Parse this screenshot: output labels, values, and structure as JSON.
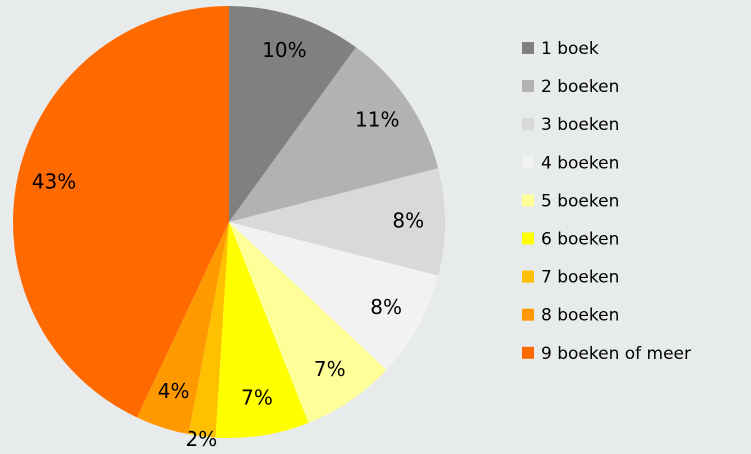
{
  "chart_data": {
    "type": "pie",
    "categories": [
      "1 boek",
      "2 boeken",
      "3 boeken",
      "4 boeken",
      "5 boeken",
      "6 boeken",
      "7 boeken",
      "8 boeken",
      "9 boeken of meer"
    ],
    "values": [
      10,
      11,
      8,
      8,
      7,
      7,
      2,
      4,
      43
    ],
    "value_labels": [
      "10%",
      "11%",
      "8%",
      "8%",
      "7%",
      "7%",
      "2%",
      "4%",
      "43%"
    ],
    "colors": [
      "#808080",
      "#b2b2b2",
      "#d9d9d9",
      "#f2f2f2",
      "#ffff99",
      "#ffff00",
      "#ffc000",
      "#ff9900",
      "#ff6a00"
    ],
    "legend": "right"
  }
}
